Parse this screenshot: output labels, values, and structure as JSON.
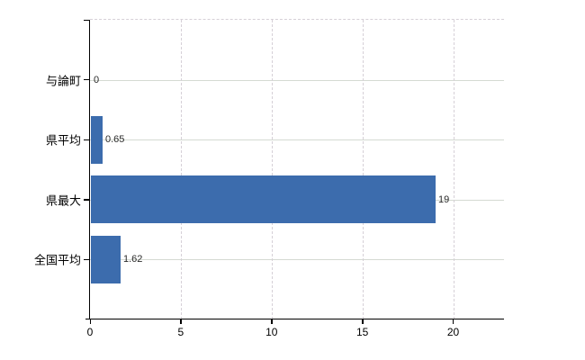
{
  "chart_data": {
    "type": "bar",
    "orientation": "horizontal",
    "title": "",
    "xlabel": "",
    "ylabel": "",
    "categories": [
      "与論町",
      "県平均",
      "県最大",
      "全国平均"
    ],
    "values": [
      0,
      0.65,
      19,
      1.62
    ],
    "value_labels": [
      "0",
      "0.65",
      "19",
      "1.62"
    ],
    "x_ticks": [
      0,
      5,
      10,
      15,
      20
    ],
    "x_tick_labels": [
      "0",
      "5",
      "10",
      "15",
      "20"
    ],
    "xlim": [
      0,
      22.8
    ],
    "grid": true,
    "legend": false,
    "bar_color": "#3c6cad",
    "horizontal_gridline_color": "#d5dad2",
    "vertical_gridline_color": "#d6d0d7",
    "axis_color": "#000000",
    "text_color": "#000000",
    "value_label_color": "#2b2b2b",
    "background_color": "#ffffff"
  }
}
